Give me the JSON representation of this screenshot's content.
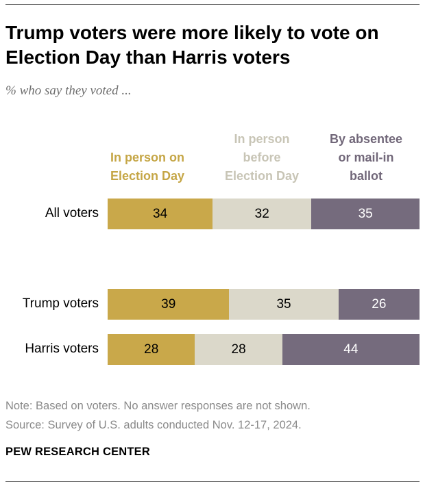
{
  "header": {
    "title": "Trump voters were more likely to vote on Election Day than Harris voters",
    "subtitle": "% who say they voted ..."
  },
  "chart_data": {
    "type": "bar",
    "stacked": true,
    "orientation": "horizontal",
    "categories": [
      "All voters",
      "Trump voters",
      "Harris voters"
    ],
    "series": [
      {
        "name": "In person on Election Day",
        "values": [
          34,
          39,
          28
        ],
        "color": "#c9a84a",
        "label_color": "#c5a646"
      },
      {
        "name": "In person before Election Day",
        "values": [
          32,
          35,
          28
        ],
        "color": "#dbd8ca",
        "label_color": "#c8c5b6"
      },
      {
        "name": "By absentee or mail-in ballot",
        "values": [
          35,
          26,
          44
        ],
        "color": "#756b7d",
        "label_color": "#716779"
      }
    ],
    "legend_lines": [
      [
        "In person on",
        "Election Day"
      ],
      [
        "In person",
        "before",
        "Election Day"
      ],
      [
        "By absentee",
        "or mail-in",
        "ballot"
      ]
    ],
    "value_text_colors": [
      "#000000",
      "#000000",
      "#ffffff"
    ],
    "legend_placement": "top",
    "grid": false
  },
  "footer": {
    "note": "Note: Based on voters. No answer responses are not shown.",
    "source": "Source: Survey of U.S. adults conducted Nov. 12-17, 2024.",
    "brand": "PEW RESEARCH CENTER"
  }
}
